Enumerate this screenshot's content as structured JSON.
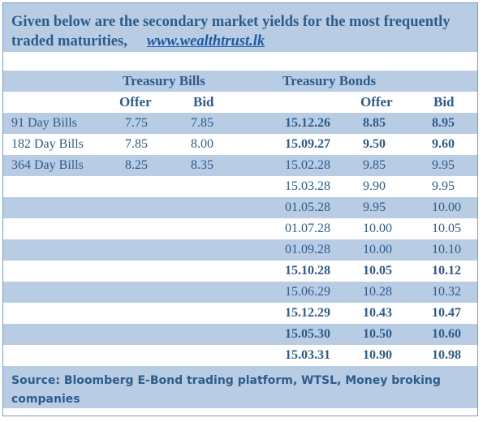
{
  "header": {
    "title": "Given below are the secondary market yields for the most frequently traded maturities,",
    "link": "www.wealthtrust.lk"
  },
  "group_headers": {
    "bills": "Treasury Bills",
    "bonds": "Treasury Bonds"
  },
  "column_headers": {
    "bills_offer": "Offer",
    "bills_bid": "Bid",
    "bonds_offer": "Offer",
    "bonds_bid": "Bid"
  },
  "bills": [
    {
      "label": "91 Day Bills",
      "offer": "7.75",
      "bid": "7.85"
    },
    {
      "label": "182 Day Bills",
      "offer": "7.85",
      "bid": "8.00"
    },
    {
      "label": "364 Day Bills",
      "offer": "8.25",
      "bid": "8.35"
    }
  ],
  "bonds": [
    {
      "maturity": "15.12.26",
      "offer": "8.85",
      "bid": "8.95",
      "bold": true
    },
    {
      "maturity": "15.09.27",
      "offer": "9.50",
      "bid": "9.60",
      "bold": true
    },
    {
      "maturity": "15.02.28",
      "offer": "9.85",
      "bid": "9.95",
      "bold": false
    },
    {
      "maturity": "15.03.28",
      "offer": "9.90",
      "bid": "9.95",
      "bold": false
    },
    {
      "maturity": "01.05.28",
      "offer": "9.95",
      "bid": "10.00",
      "bold": false
    },
    {
      "maturity": "01.07.28",
      "offer": "10.00",
      "bid": "10.05",
      "bold": false
    },
    {
      "maturity": "01.09.28",
      "offer": "10.00",
      "bid": "10.10",
      "bold": false
    },
    {
      "maturity": "15.10.28",
      "offer": "10.05",
      "bid": "10.12",
      "bold": true
    },
    {
      "maturity": "15.06.29",
      "offer": "10.28",
      "bid": "10.32",
      "bold": false
    },
    {
      "maturity": "15.12.29",
      "offer": "10.43",
      "bid": "10.47",
      "bold": true
    },
    {
      "maturity": "15.05.30",
      "offer": "10.50",
      "bid": "10.60",
      "bold": true
    },
    {
      "maturity": "15.03.31",
      "offer": "10.90",
      "bid": "10.98",
      "bold": true
    }
  ],
  "footer": {
    "source": "Source: Bloomberg E-Bond trading platform, WTSL, Money broking companies"
  }
}
